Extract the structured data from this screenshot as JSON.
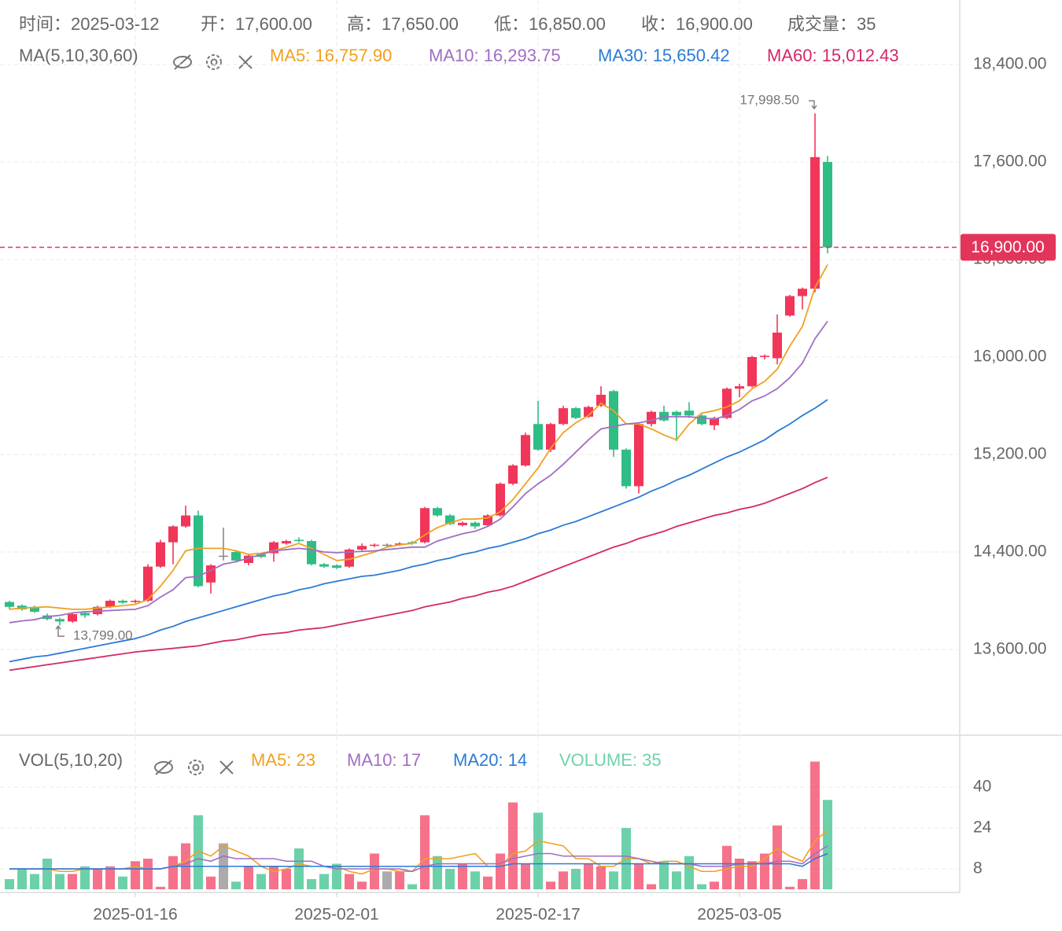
{
  "chart_data": [
    {
      "type": "candlestick",
      "header": [
        "时间：2025-03-12",
        "开：17,600.00",
        "高：17,650.00",
        "低：16,850.00",
        "收：16,900.00",
        "成交量：35"
      ],
      "indicator_label": "MA(5,10,30,60)",
      "x": [
        "2025-01-06",
        "2025-01-07",
        "2025-01-08",
        "2025-01-09",
        "2025-01-10",
        "2025-01-11",
        "2025-01-12",
        "2025-01-13",
        "2025-01-14",
        "2025-01-15",
        "2025-01-16",
        "2025-01-17",
        "2025-01-18",
        "2025-01-19",
        "2025-01-20",
        "2025-01-21",
        "2025-01-22",
        "2025-01-23",
        "2025-01-24",
        "2025-01-25",
        "2025-01-26",
        "2025-01-27",
        "2025-01-28",
        "2025-01-29",
        "2025-01-30",
        "2025-01-31",
        "2025-02-01",
        "2025-02-02",
        "2025-02-03",
        "2025-02-04",
        "2025-02-05",
        "2025-02-06",
        "2025-02-07",
        "2025-02-08",
        "2025-02-09",
        "2025-02-10",
        "2025-02-11",
        "2025-02-12",
        "2025-02-13",
        "2025-02-14",
        "2025-02-15",
        "2025-02-16",
        "2025-02-17",
        "2025-02-18",
        "2025-02-19",
        "2025-02-20",
        "2025-02-21",
        "2025-02-22",
        "2025-02-23",
        "2025-02-24",
        "2025-02-25",
        "2025-02-26",
        "2025-02-27",
        "2025-02-28",
        "2025-03-01",
        "2025-03-02",
        "2025-03-03",
        "2025-03-04",
        "2025-03-05",
        "2025-03-06",
        "2025-03-07",
        "2025-03-08",
        "2025-03-09",
        "2025-03-10",
        "2025-03-11",
        "2025-03-12"
      ],
      "xticks": [
        "2025-01-16",
        "2025-02-01",
        "2025-02-17",
        "2025-03-05"
      ],
      "open": [
        13990,
        13960,
        13950,
        13880,
        13850,
        13830,
        13900,
        13890,
        13950,
        14000,
        13990,
        14000,
        14280,
        14480,
        14610,
        14700,
        14150,
        14370,
        14400,
        14310,
        14380,
        14390,
        14470,
        14500,
        14490,
        14300,
        14290,
        14280,
        14420,
        14450,
        14460,
        14460,
        14480,
        14480,
        14760,
        14700,
        14620,
        14640,
        14620,
        14700,
        14960,
        15110,
        15450,
        15240,
        15450,
        15580,
        15510,
        15600,
        15720,
        15240,
        14940,
        15450,
        15550,
        15550,
        15560,
        15520,
        15440,
        15500,
        15740,
        15760,
        16000,
        15990,
        16340,
        16500,
        16560,
        17600
      ],
      "high": [
        14000,
        13970,
        13960,
        13895,
        13860,
        13900,
        13910,
        13960,
        14010,
        14010,
        14010,
        14300,
        14500,
        14620,
        14780,
        14740,
        14300,
        14600,
        14410,
        14380,
        14390,
        14490,
        14500,
        14520,
        14500,
        14310,
        14300,
        14430,
        14470,
        14470,
        14470,
        14480,
        14490,
        14770,
        14770,
        14710,
        14650,
        14650,
        14710,
        14970,
        15120,
        15380,
        15640,
        15460,
        15600,
        15590,
        15600,
        15760,
        15730,
        15250,
        15460,
        15560,
        15600,
        15560,
        15630,
        15530,
        15510,
        15750,
        15780,
        16010,
        16020,
        16350,
        16510,
        16570,
        17998.5,
        17650
      ],
      "low": [
        13930,
        13920,
        13900,
        13840,
        13799,
        13820,
        13860,
        13880,
        13940,
        13975,
        13980,
        13990,
        14270,
        14300,
        14600,
        14110,
        14060,
        14330,
        14320,
        14290,
        14350,
        14320,
        14460,
        14480,
        14290,
        14270,
        14260,
        14270,
        14410,
        14440,
        14440,
        14450,
        14460,
        14470,
        14690,
        14620,
        14610,
        14590,
        14610,
        14690,
        14950,
        15100,
        15230,
        15220,
        15440,
        15490,
        15500,
        15590,
        15180,
        14920,
        14880,
        15430,
        15470,
        15310,
        15500,
        15440,
        15400,
        15490,
        15670,
        15750,
        15980,
        15940,
        16330,
        16390,
        16530,
        16850
      ],
      "close": [
        13950,
        13930,
        13910,
        13850,
        13830,
        13890,
        13880,
        13950,
        14000,
        13985,
        14000,
        14280,
        14480,
        14610,
        14700,
        14120,
        14290,
        14370,
        14330,
        14370,
        14360,
        14480,
        14490,
        14490,
        14300,
        14280,
        14270,
        14420,
        14450,
        14460,
        14460,
        14470,
        14470,
        14760,
        14700,
        14630,
        14640,
        14610,
        14700,
        14960,
        15110,
        15360,
        15240,
        15450,
        15580,
        15500,
        15590,
        15690,
        15240,
        14940,
        15450,
        15550,
        15480,
        15520,
        15520,
        15450,
        15500,
        15740,
        15760,
        16000,
        16010,
        16200,
        16500,
        16560,
        17640,
        16900
      ],
      "up_color": "#f23659",
      "down_color": "#2ebd85",
      "flat_color": "#888888",
      "series": [
        {
          "name": "MA5: 16,757.90",
          "color": "#f0a020",
          "values": [
            13930,
            13940,
            13945,
            13950,
            13940,
            13930,
            13930,
            13940,
            13950,
            13960,
            13970,
            14010,
            14120,
            14250,
            14410,
            14430,
            14430,
            14430,
            14410,
            14380,
            14390,
            14410,
            14440,
            14470,
            14430,
            14380,
            14330,
            14340,
            14370,
            14400,
            14440,
            14460,
            14470,
            14540,
            14600,
            14640,
            14670,
            14670,
            14680,
            14730,
            14830,
            14960,
            15090,
            15250,
            15380,
            15460,
            15520,
            15620,
            15560,
            15450,
            15450,
            15410,
            15360,
            15320,
            15450,
            15540,
            15560,
            15590,
            15640,
            15740,
            15800,
            15900,
            16090,
            16250,
            16570,
            16757.9
          ]
        },
        {
          "name": "MA10: 16,293.75",
          "color": "#a06ec4",
          "values": [
            13820,
            13835,
            13845,
            13870,
            13880,
            13900,
            13910,
            13915,
            13920,
            13925,
            13930,
            13960,
            14030,
            14090,
            14190,
            14200,
            14250,
            14300,
            14320,
            14350,
            14380,
            14410,
            14420,
            14430,
            14420,
            14400,
            14395,
            14400,
            14405,
            14410,
            14420,
            14430,
            14440,
            14440,
            14490,
            14520,
            14550,
            14570,
            14610,
            14670,
            14770,
            14880,
            14960,
            15030,
            15120,
            15220,
            15320,
            15410,
            15430,
            15450,
            15460,
            15480,
            15510,
            15510,
            15510,
            15500,
            15490,
            15520,
            15570,
            15640,
            15680,
            15740,
            15830,
            15950,
            16150,
            16293.75
          ]
        },
        {
          "name": "MA30: 15,650.42",
          "color": "#2b7bd6",
          "values": [
            13500,
            13520,
            13540,
            13550,
            13570,
            13590,
            13610,
            13630,
            13650,
            13670,
            13690,
            13720,
            13760,
            13790,
            13830,
            13860,
            13890,
            13920,
            13950,
            13980,
            14010,
            14040,
            14060,
            14090,
            14110,
            14140,
            14160,
            14180,
            14200,
            14210,
            14230,
            14250,
            14280,
            14300,
            14330,
            14350,
            14380,
            14400,
            14430,
            14450,
            14480,
            14510,
            14550,
            14580,
            14620,
            14650,
            14690,
            14730,
            14770,
            14810,
            14850,
            14900,
            14940,
            14990,
            15030,
            15080,
            15130,
            15180,
            15220,
            15270,
            15320,
            15390,
            15450,
            15520,
            15580,
            15650.42
          ]
        },
        {
          "name": "MA60: 15,012.43",
          "color": "#d3286a",
          "values": [
            13430,
            13445,
            13460,
            13475,
            13490,
            13505,
            13520,
            13535,
            13550,
            13565,
            13580,
            13590,
            13600,
            13610,
            13620,
            13630,
            13650,
            13670,
            13680,
            13700,
            13720,
            13730,
            13740,
            13760,
            13770,
            13780,
            13800,
            13820,
            13840,
            13860,
            13880,
            13900,
            13920,
            13950,
            13970,
            13990,
            14020,
            14040,
            14070,
            14090,
            14120,
            14160,
            14200,
            14240,
            14280,
            14320,
            14360,
            14400,
            14440,
            14470,
            14510,
            14540,
            14570,
            14610,
            14640,
            14670,
            14700,
            14720,
            14750,
            14770,
            14800,
            14840,
            14880,
            14920,
            14970,
            15012.43
          ]
        }
      ],
      "ylim": [
        12897,
        18929
      ],
      "yticks": [
        {
          "value": 18400,
          "label": "18,400.00"
        },
        {
          "value": 17600,
          "label": "17,600.00"
        },
        {
          "value": 16800,
          "label": "16,800.00"
        },
        {
          "value": 16000,
          "label": "16,000.00"
        },
        {
          "value": 15200,
          "label": "15,200.00"
        },
        {
          "value": 14400,
          "label": "14,400.00"
        },
        {
          "value": 13600,
          "label": "13,600.00"
        }
      ],
      "grid": true,
      "high_label": {
        "value": 17998.5,
        "label": "17,998.50"
      },
      "low_label": {
        "value": 13799,
        "label": "13,799.00"
      },
      "last_price": {
        "value": 16900,
        "label": "16,900.00",
        "color": "#e3345a"
      }
    },
    {
      "type": "volume",
      "indicator_label": "VOL(5,10,20)",
      "values": [
        4,
        8,
        6,
        12,
        6,
        6,
        9,
        8,
        9,
        5,
        11,
        12,
        1,
        13,
        18,
        29,
        5,
        18,
        3,
        9,
        6,
        9,
        8,
        16,
        4,
        6,
        10,
        6,
        3,
        14,
        7,
        7,
        2,
        29,
        13,
        8,
        10,
        7,
        5,
        14,
        34,
        10,
        30,
        3,
        7,
        8,
        10,
        9,
        7,
        24,
        10,
        2,
        11,
        7,
        13,
        2,
        3,
        17,
        12,
        11,
        14,
        25,
        1,
        4,
        50,
        35
      ],
      "legend_label": "VOLUME: 35",
      "color": "#6fd3a9",
      "series": [
        {
          "name": "MA5: 23",
          "color": "#f0a020",
          "values": [
            8,
            8,
            8,
            8,
            7,
            7,
            8,
            8,
            8,
            8,
            9,
            8,
            8,
            9,
            11,
            15,
            13,
            17,
            15,
            13,
            9,
            7,
            8,
            10,
            9,
            9,
            9,
            7,
            6,
            8,
            8,
            7,
            7,
            12,
            12,
            12,
            13,
            14,
            9,
            9,
            14,
            15,
            19,
            18,
            17,
            12,
            12,
            9,
            9,
            12,
            12,
            10,
            11,
            11,
            9,
            7,
            7,
            8,
            9,
            9,
            12,
            16,
            13,
            11,
            19,
            23
          ]
        },
        {
          "name": "MA10: 17",
          "color": "#a06ec4",
          "values": [
            8,
            8,
            8,
            8,
            8,
            8,
            8,
            8,
            8,
            8,
            8,
            8,
            8,
            9,
            10,
            12,
            11,
            13,
            12,
            12,
            12,
            12,
            11,
            11,
            11,
            9,
            8,
            8,
            8,
            8,
            8,
            8,
            7,
            9,
            10,
            10,
            10,
            10,
            10,
            10,
            12,
            13,
            14,
            14,
            13,
            13,
            13,
            13,
            13,
            13,
            12,
            11,
            10,
            10,
            10,
            9,
            9,
            9,
            10,
            10,
            10,
            11,
            11,
            10,
            14,
            17
          ]
        },
        {
          "name": "MA20: 14",
          "color": "#2b7bd6",
          "values": [
            8,
            8,
            8,
            8,
            8,
            8,
            8,
            8,
            8,
            8,
            8,
            8,
            8,
            9,
            9,
            9,
            9,
            9,
            9,
            9,
            9,
            9,
            9,
            9,
            9,
            9,
            9,
            9,
            9,
            9,
            9,
            9,
            9,
            9,
            9,
            9,
            9,
            9,
            9,
            9,
            10,
            10,
            10,
            10,
            10,
            10,
            10,
            10,
            10,
            10,
            10,
            10,
            10,
            10,
            10,
            10,
            10,
            10,
            10,
            10,
            10,
            10,
            10,
            9,
            12,
            14
          ]
        }
      ],
      "ylim": [
        0,
        60
      ],
      "yticks": [
        8,
        24,
        40
      ]
    }
  ]
}
